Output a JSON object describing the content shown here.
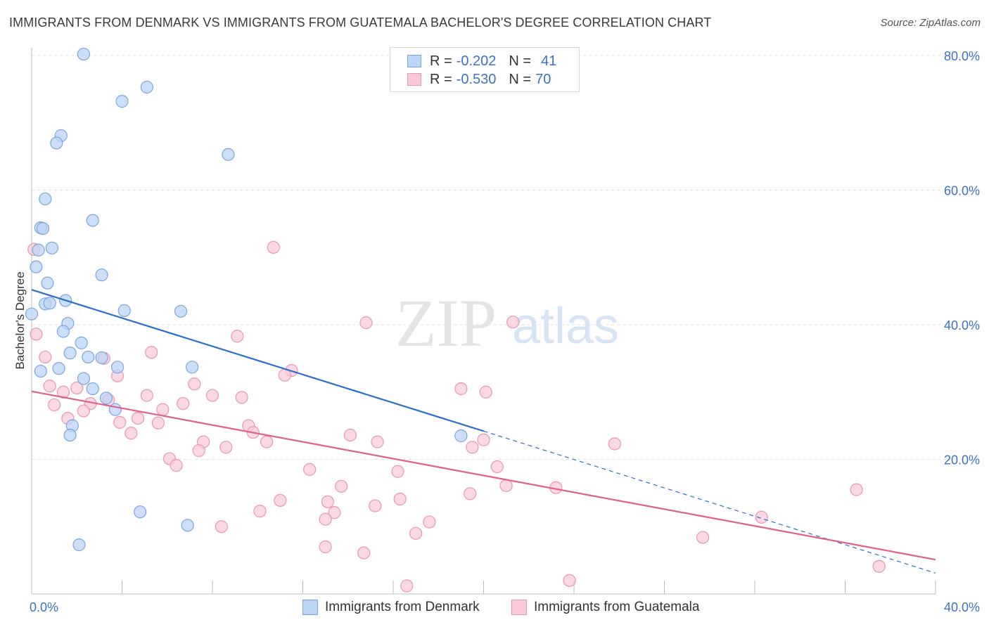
{
  "title": "IMMIGRANTS FROM DENMARK VS IMMIGRANTS FROM GUATEMALA BACHELOR'S DEGREE CORRELATION CHART",
  "source": "Source: ZipAtlas.com",
  "watermark": {
    "zip": "ZIP",
    "atlas": "atlas"
  },
  "legend": {
    "rows": [
      {
        "r_label": "R =",
        "r_value": "-0.202",
        "n_label": "N =",
        "n_value": "41"
      },
      {
        "r_label": "R =",
        "r_value": "-0.530",
        "n_label": "N =",
        "n_value": "70"
      }
    ]
  },
  "bottom_legend": {
    "denmark": "Immigrants from Denmark",
    "guatemala": "Immigrants from Guatemala"
  },
  "colors": {
    "denmark_fill": "#bcd4f5",
    "denmark_stroke": "#7aa6e0",
    "denmark_line": "#2b6fce",
    "guatemala_fill": "#f9c9d8",
    "guatemala_stroke": "#eb95b1",
    "guatemala_line": "#e0608c",
    "tick_label": "#3a73c6",
    "grid": "#e2e2e2"
  },
  "chart_data": {
    "type": "scatter",
    "ylabel": "Bachelor's Degree",
    "xlim": [
      0,
      40
    ],
    "ylim": [
      0,
      80
    ],
    "x_tick_labels": [
      "0.0%",
      "40.0%"
    ],
    "y_ticks": [
      20,
      40,
      60,
      80
    ],
    "y_tick_labels": [
      "20.0%",
      "40.0%",
      "60.0%",
      "80.0%"
    ],
    "grid": true,
    "series": [
      {
        "name": "Immigrants from Denmark",
        "points": [
          [
            2.3,
            80.2
          ],
          [
            5.1,
            75.3
          ],
          [
            4.0,
            73.2
          ],
          [
            1.3,
            68.1
          ],
          [
            1.1,
            67.0
          ],
          [
            8.7,
            65.3
          ],
          [
            0.6,
            58.7
          ],
          [
            2.7,
            55.5
          ],
          [
            0.4,
            54.4
          ],
          [
            0.5,
            54.3
          ],
          [
            0.9,
            51.4
          ],
          [
            0.3,
            51.1
          ],
          [
            0.2,
            48.6
          ],
          [
            3.1,
            47.4
          ],
          [
            0.7,
            46.2
          ],
          [
            0.6,
            43.1
          ],
          [
            0.8,
            43.2
          ],
          [
            1.5,
            43.6
          ],
          [
            4.1,
            42.1
          ],
          [
            6.6,
            42.0
          ],
          [
            0.0,
            41.6
          ],
          [
            1.6,
            40.2
          ],
          [
            1.4,
            39.0
          ],
          [
            2.2,
            37.3
          ],
          [
            1.7,
            35.8
          ],
          [
            2.5,
            35.2
          ],
          [
            3.1,
            35.1
          ],
          [
            0.4,
            33.1
          ],
          [
            1.2,
            33.5
          ],
          [
            3.8,
            33.7
          ],
          [
            7.1,
            33.7
          ],
          [
            2.3,
            32.0
          ],
          [
            2.7,
            30.5
          ],
          [
            3.3,
            29.1
          ],
          [
            3.7,
            27.4
          ],
          [
            1.8,
            25.0
          ],
          [
            1.7,
            23.6
          ],
          [
            19.0,
            23.5
          ],
          [
            4.8,
            12.2
          ],
          [
            6.9,
            10.2
          ],
          [
            2.1,
            7.3
          ]
        ],
        "trend": {
          "x0": 0,
          "y0": 45.2,
          "x1": 20,
          "y1": 24.2,
          "dashed_to_x": 40,
          "dashed_to_y": 3.1
        }
      },
      {
        "name": "Immigrants from Guatemala",
        "points": [
          [
            10.7,
            51.5
          ],
          [
            0.2,
            38.6
          ],
          [
            14.8,
            40.3
          ],
          [
            21.3,
            40.4
          ],
          [
            9.1,
            38.3
          ],
          [
            0.6,
            35.2
          ],
          [
            5.3,
            35.9
          ],
          [
            3.2,
            35.0
          ],
          [
            11.5,
            33.2
          ],
          [
            11.2,
            32.5
          ],
          [
            3.8,
            32.4
          ],
          [
            7.2,
            31.2
          ],
          [
            0.8,
            30.9
          ],
          [
            1.4,
            30.0
          ],
          [
            2.0,
            30.6
          ],
          [
            19.0,
            30.5
          ],
          [
            20.1,
            30.0
          ],
          [
            5.1,
            29.5
          ],
          [
            8.0,
            29.5
          ],
          [
            9.3,
            29.2
          ],
          [
            3.4,
            28.8
          ],
          [
            2.6,
            28.3
          ],
          [
            1.0,
            28.1
          ],
          [
            6.7,
            28.3
          ],
          [
            2.3,
            27.2
          ],
          [
            5.8,
            27.4
          ],
          [
            1.6,
            26.1
          ],
          [
            4.7,
            26.1
          ],
          [
            3.9,
            25.5
          ],
          [
            5.6,
            25.4
          ],
          [
            9.6,
            25.0
          ],
          [
            9.8,
            24.0
          ],
          [
            4.4,
            23.9
          ],
          [
            14.1,
            23.6
          ],
          [
            15.3,
            22.6
          ],
          [
            7.6,
            22.6
          ],
          [
            10.4,
            22.6
          ],
          [
            20.0,
            22.9
          ],
          [
            25.8,
            22.3
          ],
          [
            8.6,
            21.8
          ],
          [
            19.5,
            21.8
          ],
          [
            7.4,
            21.3
          ],
          [
            6.1,
            20.1
          ],
          [
            6.4,
            19.1
          ],
          [
            20.6,
            18.9
          ],
          [
            12.3,
            18.5
          ],
          [
            16.2,
            18.2
          ],
          [
            13.7,
            16.0
          ],
          [
            21.0,
            16.1
          ],
          [
            23.2,
            15.8
          ],
          [
            36.5,
            15.5
          ],
          [
            19.4,
            14.9
          ],
          [
            11.0,
            13.9
          ],
          [
            13.1,
            13.7
          ],
          [
            16.3,
            14.1
          ],
          [
            15.2,
            13.1
          ],
          [
            10.1,
            12.3
          ],
          [
            13.4,
            12.1
          ],
          [
            32.3,
            11.4
          ],
          [
            13.0,
            11.1
          ],
          [
            17.6,
            10.7
          ],
          [
            8.4,
            10.0
          ],
          [
            17.0,
            9.0
          ],
          [
            29.7,
            8.4
          ],
          [
            13.0,
            7.0
          ],
          [
            14.7,
            6.1
          ],
          [
            37.5,
            4.1
          ],
          [
            23.8,
            2.0
          ],
          [
            16.6,
            1.2
          ],
          [
            0.1,
            51.2
          ]
        ],
        "trend": {
          "x0": 0,
          "y0": 30.1,
          "x1": 40,
          "y1": 5.1
        }
      }
    ]
  }
}
